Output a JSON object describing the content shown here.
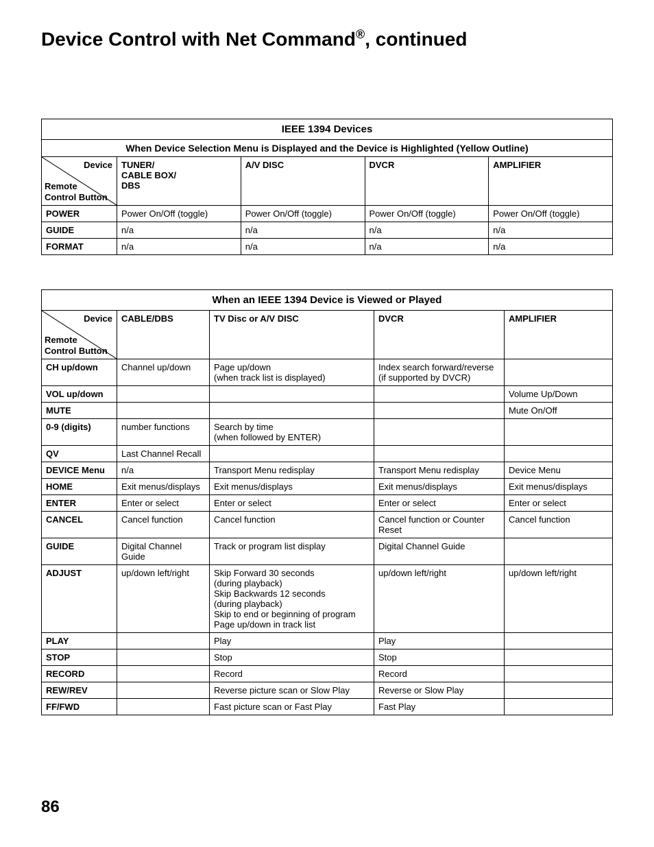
{
  "heading_pre": "Device Control with Net Command",
  "heading_reg": "®",
  "heading_post": ", continued",
  "diag_top": "Device",
  "diag_bottom_l1": "Remote",
  "diag_bottom_l2": "Control Button",
  "table1": {
    "title": "IEEE 1394 Devices",
    "subtitle": "When Device Selection Menu is Displayed and the Device is Highlighted (Yellow Outline)",
    "cols": [
      "TUNER/\nCABLE BOX/\nDBS",
      "A/V DISC",
      "DVCR",
      "AMPLIFIER"
    ],
    "rows": [
      {
        "h": "POWER",
        "c": [
          "Power On/Off (toggle)",
          "Power On/Off (toggle)",
          "Power On/Off (toggle)",
          "Power On/Off (toggle)"
        ]
      },
      {
        "h": "GUIDE",
        "c": [
          "n/a",
          "n/a",
          "n/a",
          "n/a"
        ]
      },
      {
        "h": "FORMAT",
        "c": [
          "n/a",
          "n/a",
          "n/a",
          "n/a"
        ]
      }
    ]
  },
  "table2": {
    "title": "When an IEEE 1394 Device is Viewed or Played",
    "cols": [
      "CABLE/DBS",
      "TV Disc or A/V DISC",
      "DVCR",
      "AMPLIFIER"
    ],
    "rows": [
      {
        "h": "CH up/down",
        "c": [
          "Channel up/down",
          "Page up/down\n(when track list is displayed)",
          "Index search forward/reverse\n(if supported by DVCR)",
          ""
        ]
      },
      {
        "h": "VOL up/down",
        "c": [
          "",
          "",
          "",
          "Volume Up/Down"
        ]
      },
      {
        "h": "MUTE",
        "c": [
          "",
          "",
          "",
          "Mute On/Off"
        ]
      },
      {
        "h": "0-9 (digits)",
        "c": [
          "number functions",
          "Search by time\n(when followed by ENTER)",
          "",
          ""
        ]
      },
      {
        "h": "QV",
        "c": [
          "Last Channel Recall",
          "",
          "",
          ""
        ]
      },
      {
        "h": "DEVICE Menu",
        "c": [
          "n/a",
          "Transport Menu redisplay",
          "Transport Menu redisplay",
          "Device Menu"
        ]
      },
      {
        "h": "HOME",
        "c": [
          "Exit menus/displays",
          "Exit menus/displays",
          "Exit menus/displays",
          "Exit menus/displays"
        ]
      },
      {
        "h": "ENTER",
        "c": [
          "Enter or select",
          "Enter or select",
          "Enter or select",
          "Enter or select"
        ]
      },
      {
        "h": "CANCEL",
        "c": [
          "Cancel function",
          "Cancel function",
          "Cancel function or Counter Reset",
          "Cancel function"
        ]
      },
      {
        "h": "GUIDE",
        "c": [
          "Digital Channel Guide",
          "Track or program list display",
          "Digital Channel Guide",
          ""
        ]
      },
      {
        "h": "ADJUST",
        "c": [
          "up/down left/right",
          "Skip Forward 30 seconds\n(during playback)\nSkip Backwards 12 seconds\n(during playback)\nSkip to end or beginning of program\nPage up/down in track list",
          "up/down left/right",
          "up/down left/right"
        ]
      },
      {
        "h": "PLAY",
        "c": [
          "",
          "Play",
          "Play",
          ""
        ]
      },
      {
        "h": "STOP",
        "c": [
          "",
          "Stop",
          "Stop",
          ""
        ]
      },
      {
        "h": "RECORD",
        "c": [
          "",
          "Record",
          "Record",
          ""
        ]
      },
      {
        "h": "REW/REV",
        "c": [
          "",
          "Reverse picture scan or Slow Play",
          "Reverse or Slow Play",
          ""
        ]
      },
      {
        "h": "FF/FWD",
        "c": [
          "",
          "Fast picture scan or Fast Play",
          "Fast Play",
          ""
        ]
      }
    ]
  },
  "page_number": "86"
}
